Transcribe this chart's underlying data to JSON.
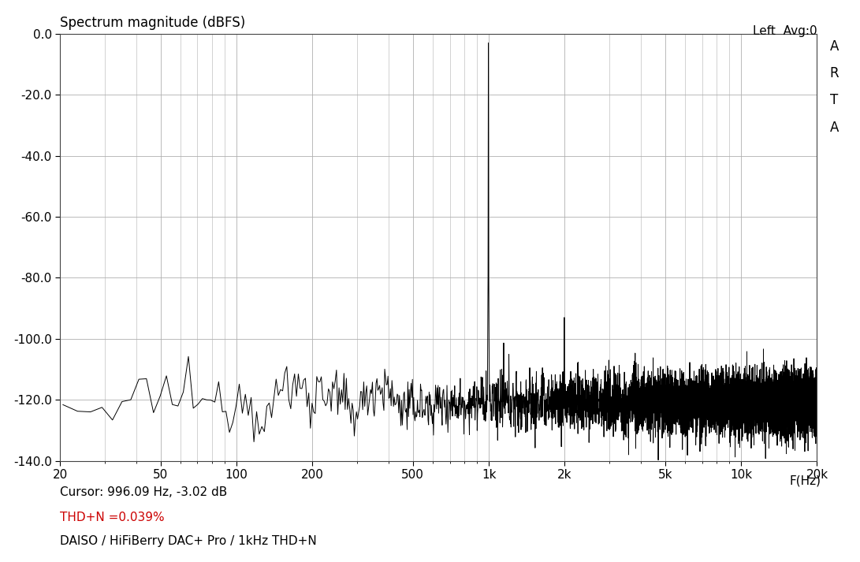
{
  "title": "Spectrum magnitude (dBFS)",
  "top_right_label": "Left  Avg:0",
  "arta_letters": [
    "A",
    "R",
    "T",
    "A"
  ],
  "xlabel": "F(Hz)",
  "cursor_label": "Cursor: 996.09 Hz, -3.02 dB",
  "thdn_label": "THD+N =0.039%",
  "footer_label": "DAISO / HiFiBerry DAC+ Pro / 1kHz THD+N",
  "xmin": 20,
  "xmax": 20000,
  "ymin": -140.0,
  "ymax": 0.0,
  "yticks": [
    0.0,
    -20.0,
    -40.0,
    -60.0,
    -80.0,
    -100.0,
    -120.0,
    -140.0
  ],
  "xticks": [
    20,
    50,
    100,
    200,
    500,
    1000,
    2000,
    5000,
    10000,
    20000
  ],
  "xticklabels": [
    "20",
    "50",
    "100",
    "200",
    "500",
    "1k",
    "2k",
    "5k",
    "10k",
    "20k"
  ],
  "signal_peak_freq": 996.09,
  "signal_peak_db": -3.02,
  "harmonic2_freq": 1992.0,
  "harmonic2_db": -93.0,
  "harmonic3_freq": 2990.0,
  "harmonic3_db": -107.0,
  "noise_floor_low": -125.0,
  "noise_floor_mid": -121.0,
  "noise_floor_high": -120.0,
  "background_color": "#ffffff",
  "plot_bg_color": "#ffffff",
  "grid_color": "#b0b0b0",
  "line_color": "#000000",
  "thdn_color": "#cc0000",
  "title_color": "#000000",
  "label_color": "#000000",
  "title_fontsize": 12,
  "tick_fontsize": 11,
  "annotation_fontsize": 11,
  "arta_fontsize": 12
}
